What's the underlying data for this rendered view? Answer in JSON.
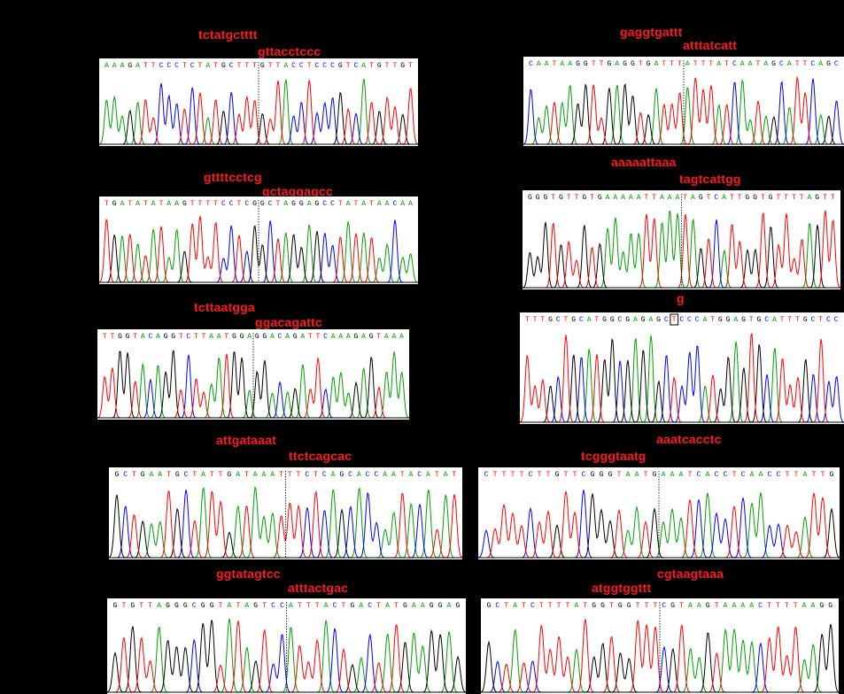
{
  "panels": [
    {
      "id": "p1",
      "labels": [
        "tctatgctttt",
        "gttacctccc"
      ],
      "sequence": "AAAGATTCCCTCTATGCTTTGTTACCTCCCGTCATGTTGT"
    },
    {
      "id": "p2",
      "labels": [
        "gaggtgattt",
        "atttatcatt"
      ],
      "sequence": "CAATAAGGTTGAGGTGATTTATTTATCAATAGCATTCAGC"
    },
    {
      "id": "p3",
      "labels": [
        "gttttcctcg",
        "gctaggagcc"
      ],
      "sequence": "TGATATATAAGTTTTCCTCGGCTAGGAGCCTATATAACAA"
    },
    {
      "id": "p4",
      "labels": [
        "aaaaattaaa",
        "tagtcattgg"
      ],
      "sequence": "GGGTGTTGTGAAAAATTAAATAGTCATTGGTGTTTTAGTT"
    },
    {
      "id": "p5",
      "labels": [
        "tcttaatgga",
        "ggacagattc"
      ],
      "sequence": "TTGGTACAGGTCTTAATGGAGGACAGATTCAAAGAGTAAA"
    },
    {
      "id": "p6",
      "labels": [
        "g"
      ],
      "sequence": "TTTGCTGCATGGCGAGAGCTCCCATGGAGTGCATTTGCTCC"
    },
    {
      "id": "p7",
      "labels": [
        "attgataaat",
        "ttctcagcac"
      ],
      "sequence": "GCTGAATGCTATTGATAAATTTCTCAGCACCAATACATAT"
    },
    {
      "id": "p8",
      "labels": [
        "aaatcacctc",
        "tcgggtaatg"
      ],
      "sequence": "CTTTTCTTGTTCGGGTAATGAAATCACCTCAACCTTATTG"
    },
    {
      "id": "p9",
      "labels": [
        "ggtatagtcc",
        "atttactgac"
      ],
      "sequence": "GTGTTAGGGCGGTATAGTCCATTTACTGACTATGAAGGAG"
    },
    {
      "id": "p10",
      "labels": [
        "cgtaagtaaa",
        "atggtggttt"
      ],
      "sequence": "GCTATCTTTTATGGTGGTTTCGTAAGTAAAACTTTTAAGG"
    }
  ],
  "colors": {
    "A": "#00a000",
    "C": "#0000ff",
    "G": "#000000",
    "T": "#ff0000",
    "label": "#ff1a1a"
  }
}
